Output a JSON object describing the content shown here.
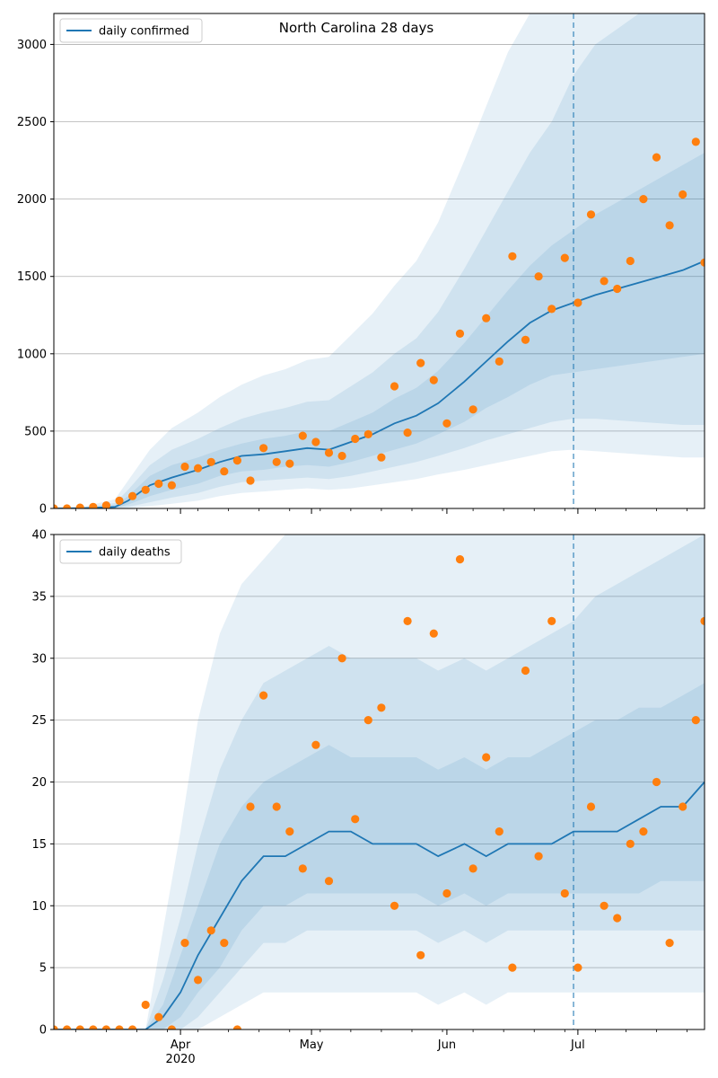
{
  "colors": {
    "model_line": "#1f77b4",
    "observed_points": "#ff7f0e",
    "band_fill": "#1f77b4",
    "grid": "#b0b0b0",
    "vline": "#1f77b4"
  },
  "chart_data": [
    {
      "type": "line",
      "title": "North Carolina 28 days",
      "legend": {
        "label": "daily confirmed",
        "position": "top-left"
      },
      "xlim": [
        "2020-03-03",
        "2020-07-30"
      ],
      "ylim": [
        0,
        3200
      ],
      "yticks": [
        0,
        500,
        1000,
        1500,
        2000,
        2500,
        3000
      ],
      "grid": "y",
      "forecast_start": "2020-06-30",
      "fit": {
        "dates": [
          "2020-03-03",
          "2020-03-10",
          "2020-03-17",
          "2020-03-20",
          "2020-03-25",
          "2020-03-30",
          "2020-04-05",
          "2020-04-10",
          "2020-04-15",
          "2020-04-20",
          "2020-04-25",
          "2020-04-30",
          "2020-05-05",
          "2020-05-10",
          "2020-05-15",
          "2020-05-20",
          "2020-05-25",
          "2020-05-30",
          "2020-06-05",
          "2020-06-10",
          "2020-06-15",
          "2020-06-20",
          "2020-06-25",
          "2020-06-30",
          "2020-07-05",
          "2020-07-10",
          "2020-07-15",
          "2020-07-20",
          "2020-07-25",
          "2020-07-30"
        ],
        "values": [
          0,
          2,
          10,
          50,
          150,
          200,
          250,
          300,
          340,
          350,
          370,
          390,
          380,
          430,
          480,
          550,
          600,
          680,
          820,
          950,
          1080,
          1200,
          1280,
          1330,
          1380,
          1420,
          1460,
          1500,
          1540,
          1600
        ],
        "bands": [
          {
            "lower": [
              0,
              0,
              3,
              25,
              80,
              120,
              160,
              210,
              240,
              250,
              270,
              280,
              270,
              300,
              340,
              380,
              420,
              480,
              560,
              650,
              720,
              800,
              860,
              880,
              900,
              920,
              940,
              960,
              980,
              1000
            ],
            "upper": [
              0,
              5,
              20,
              80,
              210,
              280,
              330,
              380,
              420,
              450,
              470,
              500,
              500,
              560,
              620,
              710,
              780,
              890,
              1070,
              1240,
              1410,
              1570,
              1700,
              1800,
              1900,
              1980,
              2060,
              2140,
              2220,
              2300
            ]
          },
          {
            "lower": [
              0,
              0,
              1,
              10,
              40,
              70,
              100,
              140,
              170,
              180,
              190,
              200,
              190,
              210,
              240,
              270,
              300,
              340,
              390,
              440,
              480,
              520,
              560,
              580,
              580,
              570,
              560,
              550,
              540,
              540
            ],
            "upper": [
              0,
              8,
              35,
              120,
              280,
              380,
              450,
              520,
              580,
              620,
              650,
              690,
              700,
              790,
              880,
              1000,
              1100,
              1270,
              1550,
              1800,
              2050,
              2300,
              2500,
              2800,
              3000,
              3100,
              3200,
              3200,
              3200,
              3200
            ]
          },
          {
            "lower": [
              0,
              0,
              0,
              3,
              15,
              30,
              50,
              80,
              100,
              110,
              120,
              130,
              120,
              130,
              150,
              170,
              190,
              220,
              250,
              280,
              310,
              340,
              370,
              380,
              370,
              360,
              350,
              340,
              330,
              330
            ],
            "upper": [
              0,
              12,
              60,
              180,
              380,
              520,
              620,
              720,
              800,
              860,
              900,
              960,
              980,
              1120,
              1260,
              1440,
              1600,
              1850,
              2250,
              2600,
              2950,
              3200,
              3200,
              3200,
              3200,
              3200,
              3200,
              3200,
              3200,
              3200
            ]
          }
        ]
      },
      "observed": {
        "dates": [
          "2020-03-03",
          "2020-03-06",
          "2020-03-09",
          "2020-03-12",
          "2020-03-15",
          "2020-03-18",
          "2020-03-21",
          "2020-03-24",
          "2020-03-27",
          "2020-03-30",
          "2020-04-02",
          "2020-04-05",
          "2020-04-08",
          "2020-04-11",
          "2020-04-14",
          "2020-04-17",
          "2020-04-20",
          "2020-04-23",
          "2020-04-26",
          "2020-04-29",
          "2020-05-02",
          "2020-05-05",
          "2020-05-08",
          "2020-05-11",
          "2020-05-14",
          "2020-05-17",
          "2020-05-20",
          "2020-05-23",
          "2020-05-26",
          "2020-05-29",
          "2020-06-01",
          "2020-06-04",
          "2020-06-07",
          "2020-06-10",
          "2020-06-13",
          "2020-06-16",
          "2020-06-19",
          "2020-06-22",
          "2020-06-25",
          "2020-06-28",
          "2020-07-01",
          "2020-07-04",
          "2020-07-07",
          "2020-07-10",
          "2020-07-13",
          "2020-07-16",
          "2020-07-19",
          "2020-07-22",
          "2020-07-25",
          "2020-07-28",
          "2020-07-30"
        ],
        "values": [
          0,
          0,
          5,
          10,
          20,
          50,
          80,
          120,
          160,
          150,
          270,
          260,
          300,
          240,
          310,
          180,
          390,
          300,
          290,
          470,
          430,
          360,
          340,
          450,
          480,
          330,
          790,
          490,
          940,
          830,
          550,
          1130,
          640,
          1230,
          950,
          1630,
          1090,
          1500,
          1290,
          1620,
          1330,
          1900,
          1470,
          1420,
          1600,
          2000,
          2270,
          1830,
          2030,
          2370,
          1590
        ]
      }
    },
    {
      "type": "line",
      "title": "",
      "legend": {
        "label": "daily deaths",
        "position": "top-left"
      },
      "xlim": [
        "2020-03-03",
        "2020-07-30"
      ],
      "ylim": [
        0,
        40
      ],
      "yticks": [
        0,
        5,
        10,
        15,
        20,
        25,
        30,
        35,
        40
      ],
      "grid": "y",
      "forecast_start": "2020-06-30",
      "xticks_major": [
        {
          "date": "2020-04-01",
          "label": "Apr",
          "sublabel": "2020"
        },
        {
          "date": "2020-05-01",
          "label": "May",
          "sublabel": ""
        },
        {
          "date": "2020-06-01",
          "label": "Jun",
          "sublabel": ""
        },
        {
          "date": "2020-07-01",
          "label": "Jul",
          "sublabel": ""
        }
      ],
      "xticks_minor": [
        "2020-03-08",
        "2020-03-15",
        "2020-03-22",
        "2020-03-29",
        "2020-04-05",
        "2020-04-12",
        "2020-04-19",
        "2020-04-26",
        "2020-05-03",
        "2020-05-10",
        "2020-05-17",
        "2020-05-24",
        "2020-05-31",
        "2020-06-07",
        "2020-06-14",
        "2020-06-21",
        "2020-06-28",
        "2020-07-05",
        "2020-07-12",
        "2020-07-19",
        "2020-07-26"
      ],
      "fit": {
        "dates": [
          "2020-03-03",
          "2020-03-10",
          "2020-03-17",
          "2020-03-24",
          "2020-03-28",
          "2020-04-01",
          "2020-04-05",
          "2020-04-10",
          "2020-04-15",
          "2020-04-20",
          "2020-04-25",
          "2020-04-30",
          "2020-05-05",
          "2020-05-10",
          "2020-05-15",
          "2020-05-20",
          "2020-05-25",
          "2020-05-30",
          "2020-06-05",
          "2020-06-10",
          "2020-06-15",
          "2020-06-20",
          "2020-06-25",
          "2020-06-30",
          "2020-07-05",
          "2020-07-10",
          "2020-07-15",
          "2020-07-20",
          "2020-07-25",
          "2020-07-30"
        ],
        "values": [
          0,
          0,
          0,
          0,
          1,
          3,
          6,
          9,
          12,
          14,
          14,
          15,
          16,
          16,
          15,
          15,
          15,
          14,
          15,
          14,
          15,
          15,
          15,
          16,
          16,
          16,
          17,
          18,
          18,
          20
        ],
        "bands": [
          {
            "lower": [
              0,
              0,
              0,
              0,
              0,
              1,
              3,
              5,
              8,
              10,
              10,
              11,
              11,
              11,
              11,
              11,
              11,
              10,
              11,
              10,
              11,
              11,
              11,
              11,
              11,
              11,
              11,
              12,
              12,
              12
            ],
            "upper": [
              0,
              0,
              0,
              0,
              2,
              6,
              10,
              15,
              18,
              20,
              21,
              22,
              23,
              22,
              22,
              22,
              22,
              21,
              22,
              21,
              22,
              22,
              23,
              24,
              25,
              25,
              26,
              26,
              27,
              28
            ]
          },
          {
            "lower": [
              0,
              0,
              0,
              0,
              0,
              0,
              1,
              3,
              5,
              7,
              7,
              8,
              8,
              8,
              8,
              8,
              8,
              7,
              8,
              7,
              8,
              8,
              8,
              8,
              8,
              8,
              8,
              8,
              8,
              8
            ],
            "upper": [
              0,
              0,
              0,
              0,
              4,
              9,
              15,
              21,
              25,
              28,
              29,
              30,
              31,
              30,
              30,
              30,
              30,
              29,
              30,
              29,
              30,
              31,
              32,
              33,
              35,
              36,
              37,
              38,
              39,
              40
            ]
          },
          {
            "lower": [
              0,
              0,
              0,
              0,
              0,
              0,
              0,
              1,
              2,
              3,
              3,
              3,
              3,
              3,
              3,
              3,
              3,
              2,
              3,
              2,
              3,
              3,
              3,
              3,
              3,
              3,
              3,
              3,
              3,
              3
            ],
            "upper": [
              0,
              0,
              0,
              0,
              8,
              16,
              25,
              32,
              36,
              38,
              40,
              40,
              40,
              40,
              40,
              40,
              40,
              40,
              40,
              40,
              40,
              40,
              40,
              40,
              40,
              40,
              40,
              40,
              40,
              40
            ]
          }
        ]
      },
      "observed": {
        "dates": [
          "2020-03-03",
          "2020-03-06",
          "2020-03-09",
          "2020-03-12",
          "2020-03-15",
          "2020-03-18",
          "2020-03-21",
          "2020-03-24",
          "2020-03-27",
          "2020-03-30",
          "2020-04-02",
          "2020-04-05",
          "2020-04-08",
          "2020-04-11",
          "2020-04-14",
          "2020-04-17",
          "2020-04-20",
          "2020-04-23",
          "2020-04-26",
          "2020-04-29",
          "2020-05-02",
          "2020-05-05",
          "2020-05-08",
          "2020-05-11",
          "2020-05-14",
          "2020-05-17",
          "2020-05-20",
          "2020-05-23",
          "2020-05-26",
          "2020-05-29",
          "2020-06-01",
          "2020-06-04",
          "2020-06-07",
          "2020-06-10",
          "2020-06-13",
          "2020-06-16",
          "2020-06-19",
          "2020-06-22",
          "2020-06-25",
          "2020-06-28",
          "2020-07-01",
          "2020-07-04",
          "2020-07-07",
          "2020-07-10",
          "2020-07-13",
          "2020-07-16",
          "2020-07-19",
          "2020-07-22",
          "2020-07-25",
          "2020-07-28",
          "2020-07-30"
        ],
        "values": [
          0,
          0,
          0,
          0,
          0,
          0,
          0,
          2,
          1,
          0,
          7,
          4,
          8,
          7,
          0,
          18,
          27,
          18,
          16,
          13,
          23,
          12,
          30,
          17,
          25,
          26,
          10,
          33,
          6,
          32,
          11,
          38,
          13,
          22,
          16,
          5,
          29,
          14,
          33,
          11,
          5,
          18,
          10,
          9,
          15,
          16,
          20,
          7,
          18,
          25,
          33
        ]
      }
    }
  ]
}
